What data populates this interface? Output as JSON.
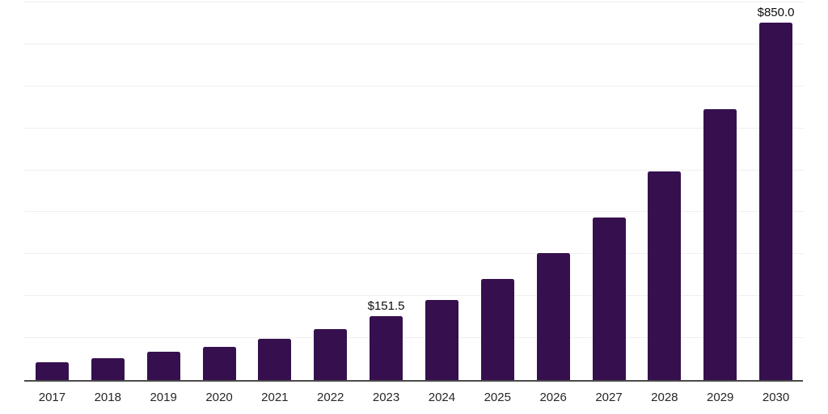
{
  "chart_data": {
    "type": "bar",
    "title": "",
    "xlabel": "",
    "ylabel": "",
    "categories": [
      "2017",
      "2018",
      "2019",
      "2020",
      "2021",
      "2022",
      "2023",
      "2024",
      "2025",
      "2026",
      "2027",
      "2028",
      "2029",
      "2030"
    ],
    "values": [
      42.4,
      52.0,
      66.5,
      78.0,
      97.3,
      120.5,
      151.5,
      190.5,
      240.0,
      302.0,
      387.0,
      497.0,
      645.0,
      850.0
    ],
    "point_labels": [
      "",
      "",
      "",
      "",
      "",
      "",
      "$151.5",
      "",
      "",
      "",
      "",
      "",
      "",
      "$850.0"
    ],
    "ylim": [
      0,
      900
    ],
    "gridline_step": 100,
    "grid": "horizontal-only",
    "legend_position": "none",
    "y_tick_labels_visible": false,
    "colors": {
      "bar": "#36104E",
      "background": "#FFFFFF",
      "gridline": "#EFEFEF",
      "axis_line": "#4A4A4A",
      "tick_label": "#262626",
      "value_label": "#0D0D0D"
    }
  }
}
